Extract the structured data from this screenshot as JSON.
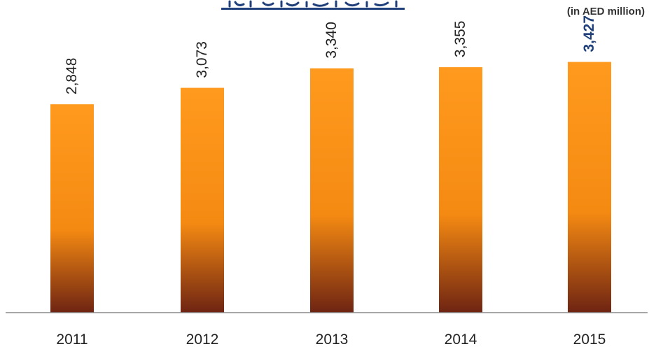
{
  "chart_data": {
    "type": "bar",
    "title": "",
    "unit_label": "(in AED million)",
    "categories": [
      "2011",
      "2012",
      "2013",
      "2014",
      "2015"
    ],
    "values": [
      2848,
      3073,
      3340,
      3355,
      3427
    ],
    "value_labels": [
      "2,848",
      "3,073",
      "3,340",
      "3,355",
      "3,427"
    ],
    "ylim": [
      0,
      3700
    ],
    "grid": false,
    "legend": "none",
    "highlight_index": 4
  },
  "colors": {
    "bar_top": "#ff9a1e",
    "bar_mid": "#f58a12",
    "bar_bottom": "#6e2412",
    "label_default": "#222222",
    "label_highlight": "#1f3f7a",
    "axis": "#8a8a8a",
    "title_ink": "#1f3f7a"
  }
}
